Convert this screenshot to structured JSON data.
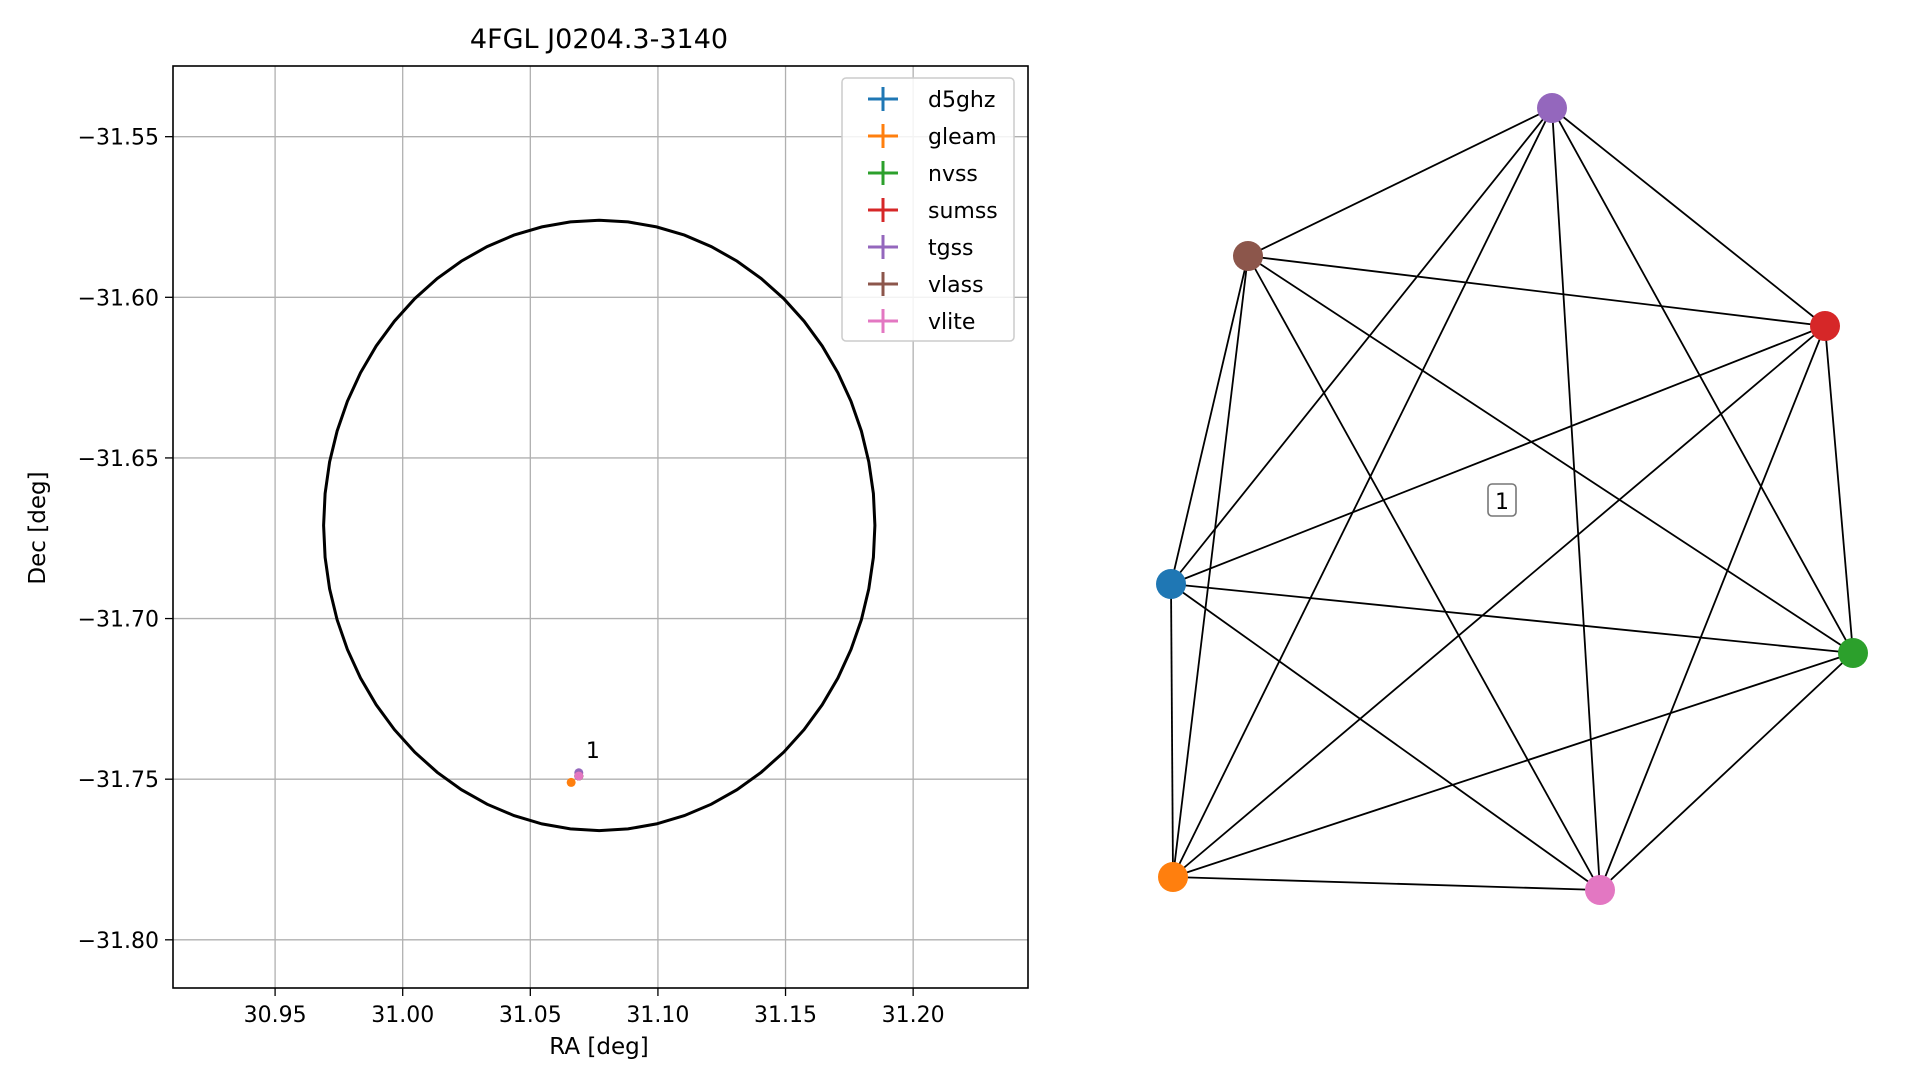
{
  "chart_data": [
    {
      "type": "scatter",
      "title": "4FGL J0204.3-3140",
      "xlabel": "RA [deg]",
      "ylabel": "Dec [deg]",
      "xlim": [
        30.91,
        31.245
      ],
      "ylim": [
        -31.815,
        -31.528
      ],
      "xticks": [
        30.95,
        31.0,
        31.05,
        31.1,
        31.15,
        31.2
      ],
      "xtick_labels": [
        "30.95",
        "31.00",
        "31.05",
        "31.10",
        "31.15",
        "31.20"
      ],
      "yticks": [
        -31.55,
        -31.6,
        -31.65,
        -31.7,
        -31.75,
        -31.8
      ],
      "ytick_labels": [
        "−31.55",
        "−31.60",
        "−31.65",
        "−31.70",
        "−31.75",
        "−31.80"
      ],
      "grid": true,
      "legend_position": "top-right",
      "error_circle": {
        "center": [
          31.077,
          -31.671
        ],
        "semi_axes": [
          0.108,
          0.095
        ]
      },
      "series": [
        {
          "name": "d5ghz",
          "color": "#1f77b4",
          "points": [
            [
              31.069,
              -31.749
            ]
          ]
        },
        {
          "name": "gleam",
          "color": "#ff7f0e",
          "points": [
            [
              31.066,
              -31.751
            ]
          ]
        },
        {
          "name": "nvss",
          "color": "#2ca02c",
          "points": [
            [
              31.069,
              -31.749
            ]
          ]
        },
        {
          "name": "sumss",
          "color": "#d62728",
          "points": [
            [
              31.069,
              -31.749
            ]
          ]
        },
        {
          "name": "tgss",
          "color": "#9467bd",
          "points": [
            [
              31.069,
              -31.748
            ]
          ]
        },
        {
          "name": "vlass",
          "color": "#8c564b",
          "points": [
            [
              31.069,
              -31.749
            ]
          ]
        },
        {
          "name": "vlite",
          "color": "#e377c2",
          "points": [
            [
              31.069,
              -31.749
            ]
          ]
        }
      ],
      "annotations": [
        {
          "text": "1",
          "x": 31.071,
          "y": -31.744
        }
      ]
    },
    {
      "type": "network",
      "cluster_label": "1",
      "nodes": [
        {
          "id": "d5ghz",
          "color": "#1f77b4"
        },
        {
          "id": "gleam",
          "color": "#ff7f0e"
        },
        {
          "id": "nvss",
          "color": "#2ca02c"
        },
        {
          "id": "sumss",
          "color": "#d62728"
        },
        {
          "id": "tgss",
          "color": "#9467bd"
        },
        {
          "id": "vlass",
          "color": "#8c564b"
        },
        {
          "id": "vlite",
          "color": "#e377c2"
        }
      ],
      "edges": "complete"
    }
  ]
}
